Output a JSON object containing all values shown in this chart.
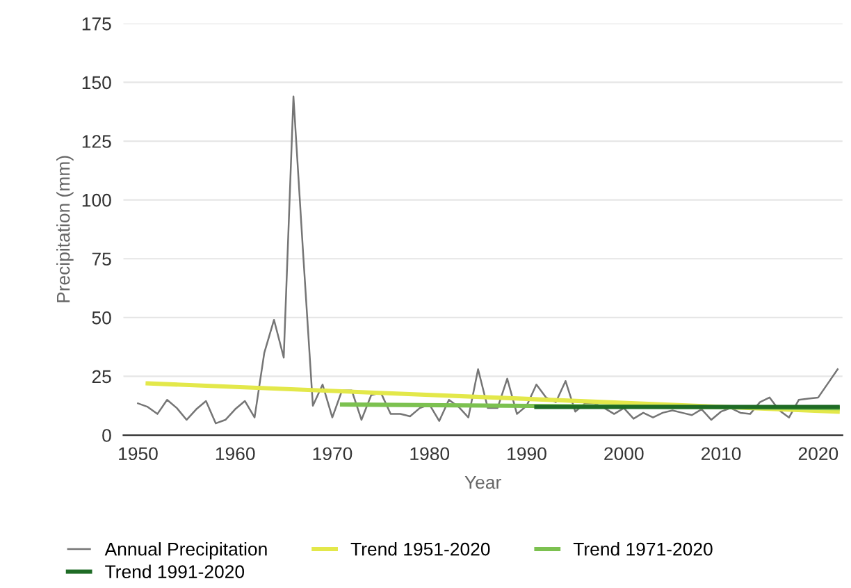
{
  "chart_data": {
    "type": "line",
    "xlabel": "Year",
    "ylabel": "Precipitation (mm)",
    "xlim": [
      1948.5,
      2022.5
    ],
    "xticks": [
      1950,
      1960,
      1970,
      1980,
      1990,
      2000,
      2010,
      2020
    ],
    "ylim": [
      0,
      175
    ],
    "yticks": [
      0,
      25,
      50,
      75,
      100,
      125,
      150,
      175
    ],
    "grid": "y",
    "legend": "bottom",
    "marker": "none",
    "line_style": "solid",
    "series": [
      {
        "name": "Annual Precipitation",
        "color": "#757575",
        "x": [
          1950,
          1951,
          1952,
          1953,
          1954,
          1955,
          1956,
          1957,
          1958,
          1959,
          1960,
          1961,
          1962,
          1963,
          1964,
          1965,
          1966,
          1967,
          1968,
          1969,
          1970,
          1971,
          1972,
          1973,
          1974,
          1975,
          1976,
          1977,
          1978,
          1979,
          1980,
          1981,
          1982,
          1983,
          1984,
          1985,
          1986,
          1987,
          1988,
          1989,
          1990,
          1991,
          1992,
          1993,
          1994,
          1995,
          1996,
          1997,
          1998,
          1999,
          2000,
          2001,
          2002,
          2003,
          2004,
          2005,
          2006,
          2007,
          2008,
          2009,
          2010,
          2011,
          2012,
          2013,
          2014,
          2015,
          2016,
          2017,
          2018,
          2019,
          2020,
          2021,
          2022
        ],
        "values": [
          13.5,
          12,
          9,
          15,
          11.5,
          6.5,
          11,
          14.5,
          5,
          6.5,
          11,
          14.5,
          7.5,
          35,
          49,
          33,
          144,
          77,
          12.5,
          21.5,
          7.5,
          19,
          19,
          6.5,
          17,
          18,
          9,
          9,
          8,
          11.5,
          13,
          6,
          15,
          12,
          7.5,
          28,
          11.5,
          11.5,
          24,
          9,
          12.5,
          21.5,
          16,
          14,
          23,
          10,
          13.5,
          13.5,
          11.5,
          9,
          11.5,
          7,
          9.5,
          7.5,
          9.5,
          10.5,
          9.5,
          8.5,
          11,
          6.5,
          10,
          11.5,
          9.5,
          9,
          14,
          16,
          10.5,
          7.5,
          15,
          15.5,
          16,
          22,
          28
        ]
      },
      {
        "name": "Trend 1951-2020",
        "color": "#e3e84a",
        "x": [
          1951,
          2022
        ],
        "values": [
          22,
          10
        ]
      },
      {
        "name": "Trend 1971-2020",
        "color": "#7cc150",
        "x": [
          1971,
          2022
        ],
        "values": [
          13,
          11.5
        ]
      },
      {
        "name": "Trend 1991-2020",
        "color": "#1e6b25",
        "x": [
          1991,
          2022
        ],
        "values": [
          12,
          12
        ]
      }
    ]
  }
}
